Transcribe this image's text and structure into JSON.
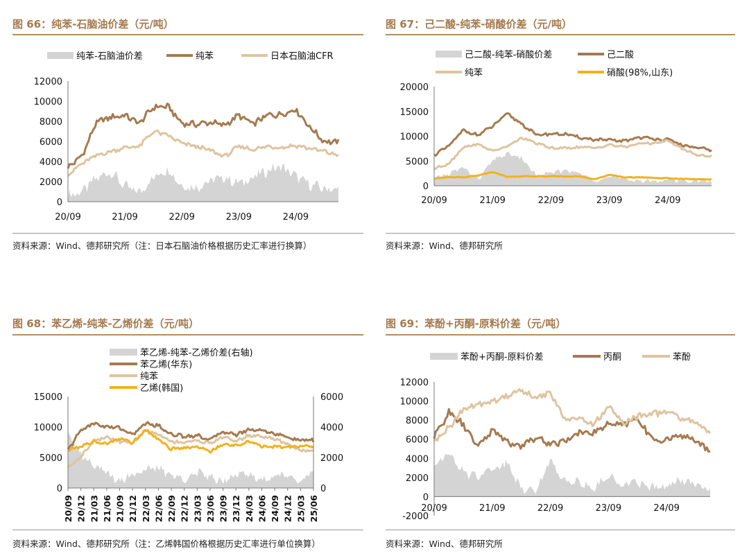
{
  "colors": {
    "spread": "#d4d4d4",
    "brown": "#a57a4f",
    "beige": "#dec49f",
    "yellow": "#f2b21c",
    "title": "#a5794d"
  },
  "panels": [
    {
      "title": "图 66：纯苯-石脑油价差（元/吨）",
      "source": "资料来源：Wind、德邦研究所（注：日本石脑油价格根据历史汇率进行换算）",
      "legend": [
        "纯苯-石脑油价差",
        "纯苯",
        "日本石脑油CFR"
      ]
    },
    {
      "title": "图 67：己二酸-纯苯-硝酸价差（元/吨）",
      "source": "资料来源：Wind、德邦研究所",
      "legend": [
        "己二酸-纯苯-硝酸价差",
        "己二酸",
        "纯苯",
        "硝酸(98%,山东)"
      ]
    },
    {
      "title": "图 68：苯乙烯-纯苯-乙烯价差（元/吨）",
      "source": "资料来源：Wind、德邦研究所（注：乙烯韩国价格根据历史汇率进行单位换算）",
      "legend": [
        "苯乙烯-纯苯-乙烯价差(右轴)",
        "苯乙烯(华东)",
        "纯苯",
        "乙烯(韩国)"
      ]
    },
    {
      "title": "图 69：苯酚+丙酮-原料价差（元/吨）",
      "source": "资料来源：Wind、德邦研究所",
      "legend": [
        "苯酚+丙酮-原料价差",
        "丙酮",
        "苯酚"
      ]
    }
  ],
  "chart_data": [
    {
      "type": "line",
      "title": "图 66：纯苯-石脑油价差（元/吨）",
      "xticks": [
        "20/09",
        "21/09",
        "22/09",
        "23/09",
        "24/09"
      ],
      "xrange": [
        "2020-09",
        "2025-06"
      ],
      "ylim": [
        0,
        12000
      ],
      "yticks": [
        0,
        2000,
        4000,
        6000,
        8000,
        10000,
        12000
      ],
      "series": [
        {
          "name": "纯苯-石脑油价差",
          "kind": "area",
          "color": "#d4d4d4",
          "x": [
            "2020-09",
            "2020-12",
            "2021-03",
            "2021-06",
            "2021-09",
            "2021-12",
            "2022-03",
            "2022-06",
            "2022-09",
            "2022-12",
            "2023-03",
            "2023-06",
            "2023-09",
            "2023-12",
            "2024-03",
            "2024-06",
            "2024-09",
            "2024-12",
            "2025-03",
            "2025-06"
          ],
          "values": [
            600,
            1000,
            2300,
            3000,
            1500,
            900,
            2400,
            3300,
            1600,
            1400,
            2100,
            2400,
            1800,
            2400,
            3100,
            3500,
            2500,
            1700,
            1300,
            1200
          ]
        },
        {
          "name": "纯苯",
          "kind": "line",
          "color": "#a57a4f",
          "x": [
            "2020-09",
            "2020-12",
            "2021-03",
            "2021-06",
            "2021-09",
            "2021-12",
            "2022-03",
            "2022-06",
            "2022-09",
            "2022-12",
            "2023-03",
            "2023-06",
            "2023-09",
            "2023-12",
            "2024-03",
            "2024-06",
            "2024-09",
            "2024-12",
            "2025-03",
            "2025-06"
          ],
          "values": [
            3400,
            4600,
            7900,
            8400,
            8600,
            7800,
            9400,
            9500,
            7800,
            7700,
            7900,
            7600,
            8600,
            7700,
            8600,
            8700,
            9200,
            7400,
            6000,
            5900
          ]
        },
        {
          "name": "日本石脑油CFR",
          "kind": "line",
          "color": "#dec49f",
          "x": [
            "2020-09",
            "2020-12",
            "2021-03",
            "2021-06",
            "2021-09",
            "2021-12",
            "2022-03",
            "2022-06",
            "2022-09",
            "2022-12",
            "2023-03",
            "2023-06",
            "2023-09",
            "2023-12",
            "2024-03",
            "2024-06",
            "2024-09",
            "2024-12",
            "2025-03",
            "2025-06"
          ],
          "values": [
            2700,
            3800,
            4600,
            5000,
            5400,
            5500,
            7000,
            6600,
            5800,
            5500,
            5100,
            4500,
            5500,
            5200,
            5500,
            5400,
            5600,
            5300,
            5000,
            4600
          ]
        }
      ]
    },
    {
      "type": "line",
      "title": "图 67：己二酸-纯苯-硝酸价差（元/吨）",
      "xticks": [
        "20/09",
        "21/09",
        "22/09",
        "23/09",
        "24/09"
      ],
      "xrange": [
        "2020-09",
        "2025-06"
      ],
      "ylim": [
        0,
        20000
      ],
      "yticks": [
        0,
        5000,
        10000,
        15000,
        20000
      ],
      "series": [
        {
          "name": "己二酸-纯苯-硝酸价差",
          "kind": "area",
          "color": "#d4d4d4",
          "x": [
            "2020-09",
            "2020-12",
            "2021-03",
            "2021-06",
            "2021-09",
            "2021-12",
            "2022-03",
            "2022-06",
            "2022-09",
            "2022-12",
            "2023-03",
            "2023-06",
            "2023-09",
            "2023-12",
            "2024-03",
            "2024-06",
            "2024-09",
            "2024-12",
            "2025-03",
            "2025-06"
          ],
          "values": [
            1500,
            2400,
            3700,
            1200,
            5000,
            6500,
            5500,
            2100,
            2500,
            3200,
            2400,
            1200,
            1800,
            1300,
            1100,
            800,
            1300,
            1100,
            1000,
            900
          ]
        },
        {
          "name": "己二酸",
          "kind": "line",
          "color": "#a57a4f",
          "x": [
            "2020-09",
            "2020-12",
            "2021-03",
            "2021-06",
            "2021-09",
            "2021-12",
            "2022-03",
            "2022-06",
            "2022-09",
            "2022-12",
            "2023-03",
            "2023-06",
            "2023-09",
            "2023-12",
            "2024-03",
            "2024-06",
            "2024-09",
            "2024-12",
            "2025-03",
            "2025-06"
          ],
          "values": [
            6200,
            8000,
            11200,
            10200,
            12000,
            14500,
            12500,
            10200,
            10500,
            10400,
            9700,
            9300,
            9200,
            9000,
            9800,
            9500,
            9300,
            8200,
            7600,
            7200
          ]
        },
        {
          "name": "纯苯",
          "kind": "line",
          "color": "#dec49f",
          "x": [
            "2020-09",
            "2020-12",
            "2021-03",
            "2021-06",
            "2021-09",
            "2021-12",
            "2022-03",
            "2022-06",
            "2022-09",
            "2022-12",
            "2023-03",
            "2023-06",
            "2023-09",
            "2023-12",
            "2024-03",
            "2024-06",
            "2024-09",
            "2024-12",
            "2025-03",
            "2025-06"
          ],
          "values": [
            3400,
            4500,
            7800,
            8400,
            7000,
            7900,
            9700,
            8600,
            7600,
            7600,
            7800,
            7600,
            8300,
            7800,
            8500,
            8600,
            9100,
            7500,
            6200,
            6000
          ]
        },
        {
          "name": "硝酸(98%,山东)",
          "kind": "line",
          "color": "#f2b21c",
          "x": [
            "2020-09",
            "2020-12",
            "2021-03",
            "2021-06",
            "2021-09",
            "2021-12",
            "2022-03",
            "2022-06",
            "2022-09",
            "2022-12",
            "2023-03",
            "2023-06",
            "2023-09",
            "2023-12",
            "2024-03",
            "2024-06",
            "2024-09",
            "2024-12",
            "2025-03",
            "2025-06"
          ],
          "values": [
            1400,
            1800,
            1700,
            2100,
            2800,
            1800,
            1900,
            1900,
            1900,
            1900,
            1900,
            1300,
            2200,
            1700,
            1700,
            1600,
            1500,
            1400,
            1300,
            1300
          ]
        }
      ]
    },
    {
      "type": "line",
      "title": "图 68：苯乙烯-纯苯-乙烯价差（元/吨）",
      "xticks": [
        "20/09",
        "20/12",
        "21/03",
        "21/06",
        "21/09",
        "21/12",
        "22/03",
        "22/06",
        "22/09",
        "22/12",
        "23/03",
        "23/06",
        "23/09",
        "23/12",
        "24/03",
        "24/06",
        "24/09",
        "24/12",
        "25/03",
        "25/06"
      ],
      "xrange": [
        "2020-09",
        "2025-06"
      ],
      "ylim": [
        0,
        15000
      ],
      "yticks": [
        0,
        5000,
        10000,
        15000
      ],
      "y2lim": [
        0,
        6000
      ],
      "y2ticks": [
        0,
        2000,
        4000,
        6000
      ],
      "series": [
        {
          "name": "苯乙烯-纯苯-乙烯价差(右轴)",
          "kind": "area",
          "axis": "right",
          "color": "#d4d4d4",
          "x": [
            "2020-09",
            "2020-12",
            "2021-03",
            "2021-06",
            "2021-09",
            "2021-12",
            "2022-03",
            "2022-06",
            "2022-09",
            "2022-12",
            "2023-03",
            "2023-06",
            "2023-09",
            "2023-12",
            "2024-03",
            "2024-06",
            "2024-09",
            "2024-12",
            "2025-03",
            "2025-06"
          ],
          "values": [
            3800,
            2200,
            1600,
            900,
            500,
            900,
            1200,
            1300,
            800,
            600,
            1000,
            700,
            500,
            1000,
            800,
            600,
            700,
            900,
            500,
            1000
          ]
        },
        {
          "name": "苯乙烯(华东)",
          "kind": "line",
          "color": "#a57a4f",
          "x": [
            "2020-09",
            "2020-12",
            "2021-03",
            "2021-06",
            "2021-09",
            "2021-12",
            "2022-03",
            "2022-06",
            "2022-09",
            "2022-12",
            "2023-03",
            "2023-06",
            "2023-09",
            "2023-12",
            "2024-03",
            "2024-06",
            "2024-09",
            "2024-12",
            "2025-03",
            "2025-06"
          ],
          "values": [
            6200,
            9500,
            10600,
            10000,
            9900,
            8700,
            10600,
            10200,
            8800,
            8500,
            8600,
            7900,
            9300,
            8700,
            9600,
            9500,
            8900,
            8300,
            7800,
            7800
          ]
        },
        {
          "name": "纯苯",
          "kind": "line",
          "color": "#dec49f",
          "x": [
            "2020-09",
            "2020-12",
            "2021-03",
            "2021-06",
            "2021-09",
            "2021-12",
            "2022-03",
            "2022-06",
            "2022-09",
            "2022-12",
            "2023-03",
            "2023-06",
            "2023-09",
            "2023-12",
            "2024-03",
            "2024-06",
            "2024-09",
            "2024-12",
            "2025-03",
            "2025-06"
          ],
          "values": [
            3400,
            5200,
            7800,
            8300,
            7600,
            7300,
            9500,
            8800,
            7600,
            7500,
            7800,
            7300,
            8400,
            7700,
            8600,
            8500,
            8000,
            7200,
            6200,
            6100
          ]
        },
        {
          "name": "乙烯(韩国)",
          "kind": "line",
          "color": "#f2b21c",
          "x": [
            "2020-09",
            "2020-12",
            "2021-03",
            "2021-06",
            "2021-09",
            "2021-12",
            "2022-03",
            "2022-06",
            "2022-09",
            "2022-12",
            "2023-03",
            "2023-06",
            "2023-09",
            "2023-12",
            "2024-03",
            "2024-06",
            "2024-09",
            "2024-12",
            "2025-03",
            "2025-06"
          ],
          "values": [
            6200,
            6800,
            7600,
            7200,
            8200,
            7400,
            9600,
            7900,
            6400,
            6600,
            6800,
            6000,
            7100,
            7000,
            7600,
            6800,
            6800,
            6800,
            6800,
            6800
          ]
        }
      ]
    },
    {
      "type": "line",
      "title": "图 69：苯酚+丙酮-原料价差（元/吨）",
      "xticks": [
        "20/09",
        "21/09",
        "22/09",
        "23/09",
        "24/09"
      ],
      "xrange": [
        "2020-09",
        "2025-06"
      ],
      "ylim": [
        -2000,
        12000
      ],
      "yticks": [
        -2000,
        0,
        2000,
        4000,
        6000,
        8000,
        10000,
        12000
      ],
      "series": [
        {
          "name": "苯酚+丙酮-原料价差",
          "kind": "area",
          "color": "#d4d4d4",
          "x": [
            "2020-09",
            "2020-12",
            "2021-03",
            "2021-06",
            "2021-09",
            "2021-12",
            "2022-03",
            "2022-06",
            "2022-09",
            "2022-12",
            "2023-03",
            "2023-06",
            "2023-09",
            "2023-12",
            "2024-03",
            "2024-06",
            "2024-09",
            "2024-12",
            "2025-03",
            "2025-06"
          ],
          "values": [
            3500,
            4500,
            2500,
            2200,
            3000,
            3500,
            900,
            800,
            3700,
            1800,
            1500,
            900,
            2200,
            1200,
            1500,
            1000,
            1200,
            1600,
            1300,
            1000
          ]
        },
        {
          "name": "丙酮",
          "kind": "line",
          "color": "#a57a4f",
          "x": [
            "2020-09",
            "2020-12",
            "2021-03",
            "2021-06",
            "2021-09",
            "2021-12",
            "2022-03",
            "2022-06",
            "2022-09",
            "2022-12",
            "2023-03",
            "2023-06",
            "2023-09",
            "2023-12",
            "2024-03",
            "2024-06",
            "2024-09",
            "2024-12",
            "2025-03",
            "2025-06"
          ],
          "values": [
            6200,
            8800,
            7500,
            5200,
            7000,
            5700,
            5300,
            6200,
            5500,
            5800,
            6800,
            6700,
            7600,
            7500,
            8200,
            6000,
            5900,
            6500,
            5800,
            4900
          ]
        },
        {
          "name": "苯酚",
          "kind": "line",
          "color": "#dec49f",
          "x": [
            "2020-09",
            "2020-12",
            "2021-03",
            "2021-06",
            "2021-09",
            "2021-12",
            "2022-03",
            "2022-06",
            "2022-09",
            "2022-12",
            "2023-03",
            "2023-06",
            "2023-09",
            "2023-12",
            "2024-03",
            "2024-06",
            "2024-09",
            "2024-12",
            "2025-03",
            "2025-06"
          ],
          "values": [
            5600,
            7200,
            9200,
            9500,
            10000,
            10500,
            11200,
            10200,
            11000,
            8000,
            8200,
            7600,
            9500,
            7800,
            8400,
            8700,
            8900,
            8200,
            7800,
            6700
          ]
        }
      ]
    }
  ]
}
